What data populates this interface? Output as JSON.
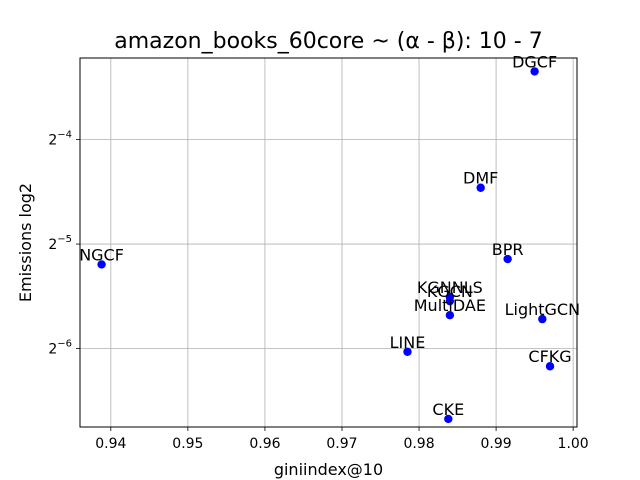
{
  "chart_data": {
    "type": "scatter",
    "title": "amazon_books_60core ~ (α - β): 10 - 7",
    "xlabel": "giniindex@10",
    "ylabel": "Emissions log2",
    "xlim": [
      0.936,
      1.0005
    ],
    "ylim_log2": [
      -6.75,
      -3.22
    ],
    "y_scale": "log2",
    "x_ticks": [
      0.94,
      0.95,
      0.96,
      0.97,
      0.98,
      0.99,
      1.0
    ],
    "x_tick_labels": [
      "0.94",
      "0.95",
      "0.96",
      "0.97",
      "0.98",
      "0.99",
      "1.00"
    ],
    "y_ticks_log2": [
      -4,
      -5,
      -6
    ],
    "grid": true,
    "marker_color": "#0000ff",
    "points": [
      {
        "name": "DGCF",
        "x": 0.995,
        "y": 0.0982
      },
      {
        "name": "DMF",
        "x": 0.988,
        "y": 0.0454
      },
      {
        "name": "NGCF",
        "x": 0.9388,
        "y": 0.0273
      },
      {
        "name": "BPR",
        "x": 0.9915,
        "y": 0.0283
      },
      {
        "name": "KGCN",
        "x": 0.984,
        "y": 0.0214
      },
      {
        "name": "KGNNLS",
        "x": 0.984,
        "y": 0.022
      },
      {
        "name": "MultiDAE",
        "x": 0.984,
        "y": 0.0195
      },
      {
        "name": "LightGCN",
        "x": 0.996,
        "y": 0.019
      },
      {
        "name": "LINE",
        "x": 0.9785,
        "y": 0.0153
      },
      {
        "name": "CFKG",
        "x": 0.997,
        "y": 0.0139
      },
      {
        "name": "CKE",
        "x": 0.9838,
        "y": 0.0098
      }
    ]
  }
}
